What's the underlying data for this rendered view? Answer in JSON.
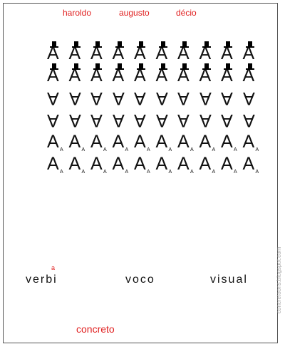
{
  "authors": [
    "haroldo",
    "augusto",
    "décio"
  ],
  "glyph": "A",
  "grid": {
    "columns": 10,
    "rows": [
      {
        "style": "hat"
      },
      {
        "style": "hat"
      },
      {
        "style": "inverted"
      },
      {
        "style": "inverted"
      },
      {
        "style": "subscript"
      },
      {
        "style": "subscript"
      }
    ],
    "subscript_letter": "A"
  },
  "words": {
    "small_a": "a",
    "verbi": "verbi",
    "voco": "voco",
    "visual": "visual",
    "concreto": "concreto"
  },
  "side_text": "concretoons.blogspot.com",
  "colors": {
    "accent": "#e02020",
    "text": "#111111"
  }
}
